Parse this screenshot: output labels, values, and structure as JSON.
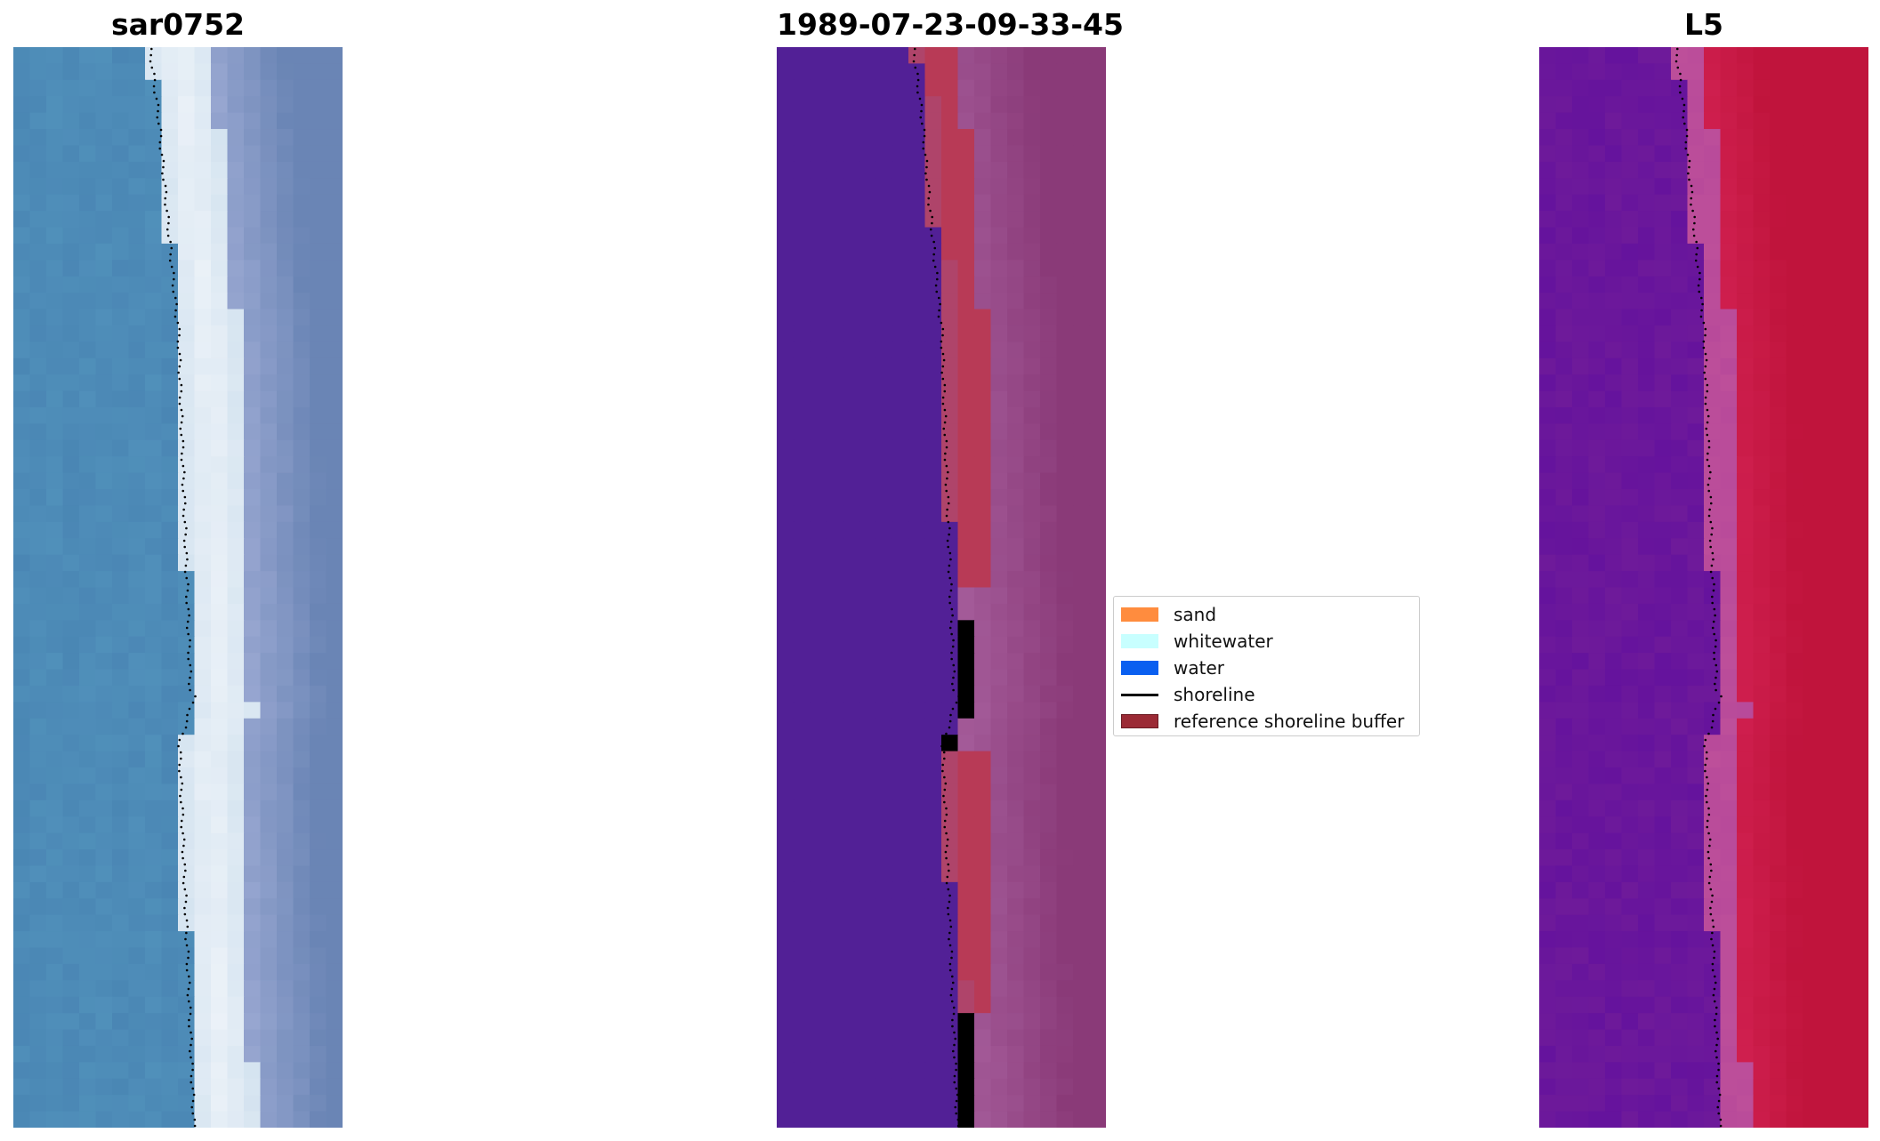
{
  "panels": [
    {
      "title": "sar0752",
      "kind": "rgb-image"
    },
    {
      "title": "1989-07-23-09-33-45",
      "kind": "classified-image"
    },
    {
      "title": "L5",
      "kind": "index-image"
    }
  ],
  "legend": {
    "location": "center-right of middle panel",
    "items": [
      {
        "label": "sand",
        "color": "#ff8c3e",
        "type": "patch"
      },
      {
        "label": "whitewater",
        "color": "#c8ffff",
        "type": "patch"
      },
      {
        "label": "water",
        "color": "#0a5ff0",
        "type": "patch"
      },
      {
        "label": "shoreline",
        "color": "#000000",
        "type": "line"
      },
      {
        "label": "reference shoreline buffer",
        "color": "#9b2a35",
        "type": "patch"
      }
    ]
  },
  "colors": {
    "water_left": "#4a86b4",
    "whitewater_left": "#f4f7fb",
    "land_left": "#6a85b5",
    "water_class": "#522096",
    "buffer": "#b83a56",
    "land_class": "#8a3a78",
    "index_water": "#6e1a9a",
    "index_land": "#c0143c"
  },
  "chart_data": {
    "type": "heatmap",
    "description_of_axes": "none",
    "shoreline_style": "dotted"
  }
}
